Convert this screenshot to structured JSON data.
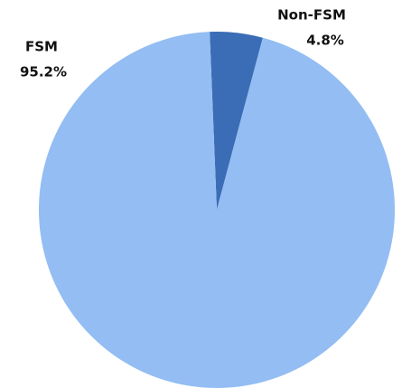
{
  "chart_data": {
    "type": "pie",
    "categories": [
      "Non-FSM",
      "FSM"
    ],
    "values": [
      4.8,
      95.2
    ],
    "value_labels": [
      "4.8%",
      "95.2%"
    ],
    "colors": [
      "#3a6db5",
      "#93bdf3"
    ]
  }
}
